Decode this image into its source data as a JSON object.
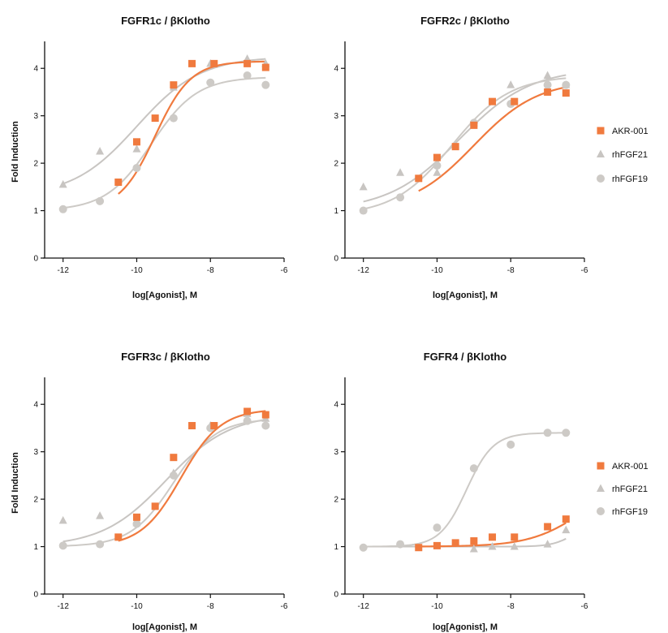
{
  "figure": {
    "colors": {
      "AKR-001": "#f07a3e",
      "rhFGF21": "#c8c5c2",
      "rhFGF19": "#cdcac6",
      "axis": "#111111"
    },
    "legend": [
      "AKR-001",
      "rhFGF21",
      "rhFGF19"
    ]
  },
  "chart_data": [
    {
      "type": "scatter",
      "title": "FGFR1c / βKlotho",
      "xlabel": "log[Agonist], M",
      "ylabel": "Fold Induction",
      "xlim": [
        -12.5,
        -6
      ],
      "ylim": [
        0,
        4.5
      ],
      "xticks": [
        "-12",
        "-10",
        "-8",
        "-6"
      ],
      "yticks": [
        "0",
        "1",
        "2",
        "3",
        "4"
      ],
      "series": [
        {
          "name": "AKR-001",
          "marker": "square",
          "x": [
            -10.5,
            -10,
            -9.5,
            -9,
            -8.5,
            -7.9,
            -7,
            -6.5
          ],
          "y": [
            1.6,
            2.45,
            2.95,
            3.65,
            4.1,
            4.1,
            4.1,
            4.02
          ]
        },
        {
          "name": "rhFGF21",
          "marker": "triangle",
          "x": [
            -12,
            -11,
            -10,
            -9,
            -8,
            -7,
            -6.5
          ],
          "y": [
            1.55,
            2.25,
            2.3,
            3.6,
            4.1,
            4.2,
            4.1
          ]
        },
        {
          "name": "rhFGF19",
          "marker": "circle",
          "x": [
            -12,
            -11,
            -10,
            -9,
            -8,
            -7,
            -6.5
          ],
          "y": [
            1.03,
            1.2,
            1.9,
            2.95,
            3.7,
            3.85,
            3.65
          ]
        }
      ],
      "fits": [
        {
          "name": "AKR-001",
          "bottom": 1.0,
          "top": 4.15,
          "ec50": -9.5,
          "hill": 0.9
        },
        {
          "name": "rhFGF21",
          "bottom": 1.3,
          "top": 4.25,
          "ec50": -10.0,
          "hill": 0.5
        },
        {
          "name": "rhFGF19",
          "bottom": 1.0,
          "top": 3.82,
          "ec50": -9.6,
          "hill": 0.7
        }
      ]
    },
    {
      "type": "scatter",
      "title": "FGFR2c / βKlotho",
      "xlabel": "log[Agonist], M",
      "ylabel": "",
      "xlim": [
        -12.5,
        -6
      ],
      "ylim": [
        0,
        4.5
      ],
      "xticks": [
        "-12",
        "-10",
        "-8",
        "-6"
      ],
      "yticks": [
        "0",
        "1",
        "2",
        "3",
        "4"
      ],
      "series": [
        {
          "name": "AKR-001",
          "marker": "square",
          "x": [
            -10.5,
            -10,
            -9.5,
            -9,
            -8.5,
            -7.9,
            -7,
            -6.5
          ],
          "y": [
            1.68,
            2.12,
            2.35,
            2.8,
            3.3,
            3.3,
            3.5,
            3.48
          ]
        },
        {
          "name": "rhFGF21",
          "marker": "triangle",
          "x": [
            -12,
            -11,
            -10,
            -9,
            -8,
            -7,
            -6.5
          ],
          "y": [
            1.5,
            1.8,
            1.8,
            2.85,
            3.65,
            3.85,
            3.65
          ]
        },
        {
          "name": "rhFGF19",
          "marker": "circle",
          "x": [
            -12,
            -11,
            -10,
            -9,
            -8,
            -7,
            -6.5
          ],
          "y": [
            1.0,
            1.28,
            1.95,
            2.85,
            3.25,
            3.65,
            3.65
          ]
        }
      ],
      "fits": [
        {
          "name": "AKR-001",
          "bottom": 1.0,
          "top": 3.75,
          "ec50": -9.0,
          "hill": 0.5
        },
        {
          "name": "rhFGF21",
          "bottom": 1.0,
          "top": 4.0,
          "ec50": -9.4,
          "hill": 0.45
        },
        {
          "name": "rhFGF19",
          "bottom": 0.9,
          "top": 3.85,
          "ec50": -9.6,
          "hill": 0.55
        }
      ]
    },
    {
      "type": "scatter",
      "title": "FGFR3c / βKlotho",
      "xlabel": "log[Agonist], M",
      "ylabel": "Fold Induction",
      "xlim": [
        -12.5,
        -6
      ],
      "ylim": [
        0,
        4.5
      ],
      "xticks": [
        "-12",
        "-10",
        "-8",
        "-6"
      ],
      "yticks": [
        "0",
        "1",
        "2",
        "3",
        "4"
      ],
      "series": [
        {
          "name": "AKR-001",
          "marker": "square",
          "x": [
            -10.5,
            -10,
            -9.5,
            -9,
            -8.5,
            -7.9,
            -7,
            -6.5
          ],
          "y": [
            1.2,
            1.62,
            1.85,
            2.88,
            3.55,
            3.55,
            3.85,
            3.78
          ]
        },
        {
          "name": "rhFGF21",
          "marker": "triangle",
          "x": [
            -12,
            -11,
            -10,
            -9,
            -8,
            -7,
            -6.5
          ],
          "y": [
            1.55,
            1.65,
            1.5,
            2.55,
            3.55,
            3.8,
            3.7
          ]
        },
        {
          "name": "rhFGF19",
          "marker": "circle",
          "x": [
            -12,
            -11,
            -10,
            -9,
            -8,
            -7,
            -6.5
          ],
          "y": [
            1.02,
            1.05,
            1.48,
            2.5,
            3.5,
            3.65,
            3.55
          ]
        }
      ],
      "fits": [
        {
          "name": "AKR-001",
          "bottom": 1.0,
          "top": 3.9,
          "ec50": -8.8,
          "hill": 0.8
        },
        {
          "name": "rhFGF21",
          "bottom": 1.0,
          "top": 3.8,
          "ec50": -9.2,
          "hill": 0.5
        },
        {
          "name": "rhFGF19",
          "bottom": 1.0,
          "top": 3.7,
          "ec50": -9.0,
          "hill": 0.75
        }
      ]
    },
    {
      "type": "scatter",
      "title": "FGFR4 / βKlotho",
      "xlabel": "log[Agonist], M",
      "ylabel": "",
      "xlim": [
        -12.5,
        -6
      ],
      "ylim": [
        0,
        4.5
      ],
      "xticks": [
        "-12",
        "-10",
        "-8",
        "-6"
      ],
      "yticks": [
        "0",
        "1",
        "2",
        "3",
        "4"
      ],
      "series": [
        {
          "name": "AKR-001",
          "marker": "square",
          "x": [
            -10.5,
            -10,
            -9.5,
            -9,
            -8.5,
            -7.9,
            -7,
            -6.5
          ],
          "y": [
            0.98,
            1.02,
            1.08,
            1.12,
            1.2,
            1.2,
            1.42,
            1.58
          ]
        },
        {
          "name": "rhFGF21",
          "marker": "triangle",
          "x": [
            -9,
            -8.5,
            -7.9,
            -7,
            -6.5
          ],
          "y": [
            0.95,
            1.0,
            1.0,
            1.05,
            1.35
          ]
        },
        {
          "name": "rhFGF19",
          "marker": "circle",
          "x": [
            -12,
            -11,
            -10,
            -9,
            -8,
            -7,
            -6.5
          ],
          "y": [
            0.98,
            1.05,
            1.4,
            2.65,
            3.15,
            3.4,
            3.4
          ]
        }
      ],
      "fits": [
        {
          "name": "AKR-001",
          "bottom": 1.0,
          "top": 2.5,
          "ec50": -6.0,
          "hill": 0.6
        },
        {
          "name": "rhFGF21",
          "bottom": 1.0,
          "top": 1.5,
          "ec50": -6.3,
          "hill": 1.5
        },
        {
          "name": "rhFGF19",
          "bottom": 1.0,
          "top": 3.4,
          "ec50": -9.2,
          "hill": 1.2
        }
      ]
    }
  ]
}
